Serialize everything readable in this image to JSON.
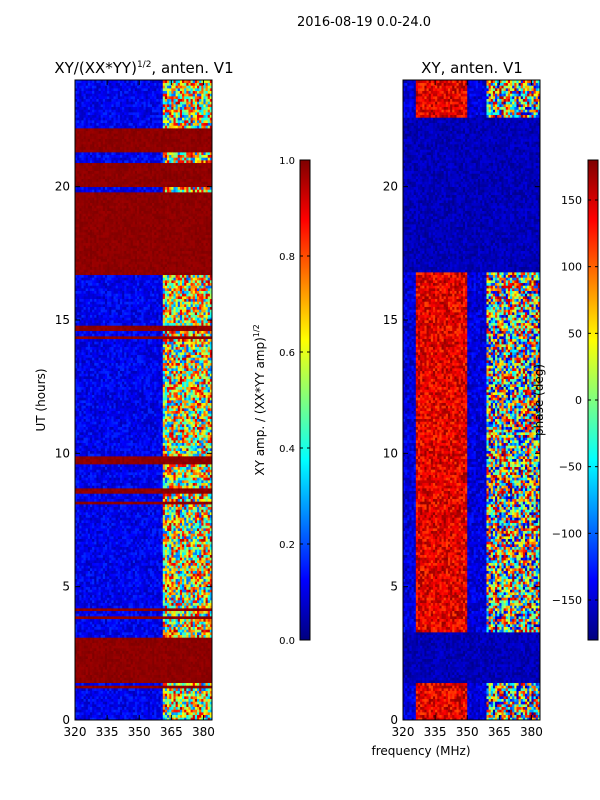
{
  "suptitle": "2016-08-19 0.0-24.0",
  "xlabel_shared": "frequency (MHz)",
  "colormap": [
    "#00007f",
    "#0000ff",
    "#007fff",
    "#00ffff",
    "#7fff7f",
    "#ffff00",
    "#ff7f00",
    "#ff0000",
    "#7f0000"
  ],
  "chart_data": [
    {
      "type": "heatmap",
      "title_main": "XY/(XX*YY)",
      "title_exp": "1/2",
      "title_suffix": ", anten. V1",
      "ylabel": "UT (hours)",
      "xlim": [
        320,
        384
      ],
      "ylim": [
        0,
        24
      ],
      "xticks": [
        320,
        335,
        350,
        365,
        380
      ],
      "yticks": [
        0,
        5,
        10,
        15,
        20
      ],
      "bright_band_mhz": [
        361,
        384
      ],
      "saturated_rows_ut": [
        [
          1.4,
          3.1
        ],
        [
          8.5,
          8.7
        ],
        [
          9.6,
          9.9
        ],
        [
          14.6,
          14.8
        ],
        [
          16.7,
          19.8
        ],
        [
          20.0,
          20.9
        ],
        [
          21.3,
          22.2
        ]
      ],
      "colorbar": {
        "label_main": "XY amp. / (XX*YY amp)",
        "label_exp": "1/2",
        "range": [
          0,
          1
        ],
        "ticks": [
          "0.0",
          "0.2",
          "0.4",
          "0.6",
          "0.8",
          "1.0"
        ],
        "tick_values": [
          0,
          0.2,
          0.4,
          0.6,
          0.8,
          1.0
        ]
      }
    },
    {
      "type": "heatmap",
      "title": "XY, anten. V1",
      "xlim": [
        320,
        384
      ],
      "ylim": [
        0,
        24
      ],
      "xticks": [
        320,
        335,
        350,
        365,
        380
      ],
      "yticks": [
        0,
        5,
        10,
        15,
        20
      ],
      "red_band_mhz": [
        326,
        350
      ],
      "mixed_band_mhz": [
        359,
        384
      ],
      "blue_rows_ut": [
        [
          1.4,
          3.3
        ],
        [
          16.8,
          22.6
        ]
      ],
      "colorbar": {
        "label": "phase (deg)",
        "range": [
          -180,
          180
        ],
        "ticks": [
          "−150",
          "−100",
          "−50",
          "0",
          "50",
          "100",
          "150"
        ],
        "tick_values": [
          -150,
          -100,
          -50,
          0,
          50,
          100,
          150
        ]
      }
    }
  ]
}
